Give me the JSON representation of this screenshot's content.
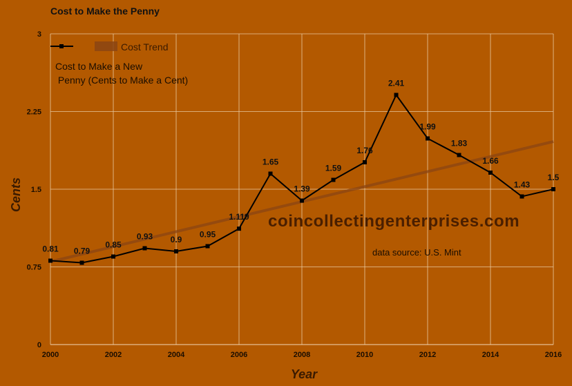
{
  "chart_data": {
    "type": "line",
    "title": "Cost to Make the Penny",
    "xlabel": "Year",
    "ylabel": "Cents",
    "xlim": [
      2000,
      2016
    ],
    "ylim": [
      0,
      3
    ],
    "x_ticks": [
      2000,
      2002,
      2004,
      2006,
      2008,
      2010,
      2012,
      2014,
      2016
    ],
    "y_ticks": [
      0,
      0.75,
      1.5,
      2.25,
      3
    ],
    "y_tick_labels": [
      "0",
      "0.75",
      "1.5",
      "2.25",
      "3"
    ],
    "grid": true,
    "legend_position": "top-left",
    "series": [
      {
        "name": "Cost to Make a New Penny (Cents to Make a Cent)",
        "name_lines": [
          "Cost to Make a New",
          " Penny (Cents to Make a Cent)"
        ],
        "color": "#000000",
        "x": [
          2000,
          2001,
          2002,
          2003,
          2004,
          2005,
          2006,
          2007,
          2008,
          2009,
          2010,
          2011,
          2012,
          2013,
          2014,
          2015,
          2016
        ],
        "values": [
          0.81,
          0.79,
          0.85,
          0.93,
          0.9,
          0.95,
          1.119,
          1.65,
          1.39,
          1.59,
          1.76,
          2.41,
          1.99,
          1.83,
          1.66,
          1.43,
          1.5
        ],
        "data_labels": [
          "0.81",
          "0.79",
          "0.85",
          "0.93",
          "0.9",
          "0.95",
          "1.119",
          "1.65",
          "1.39",
          "1.59",
          "1.76",
          "2.41",
          "1.99",
          "1.83",
          "1.66",
          "",
          "1.5"
        ]
      },
      {
        "name": "Cost Trend",
        "color": "#8b4513",
        "x": [
          2000,
          2016
        ],
        "values": [
          0.8,
          1.96
        ]
      }
    ],
    "annotations": [
      "coincollectingenterprises.com",
      "data source: U.S. Mint"
    ],
    "extra_labels": [
      {
        "text": "1.43",
        "x": 2015,
        "y": 1.43
      }
    ]
  }
}
